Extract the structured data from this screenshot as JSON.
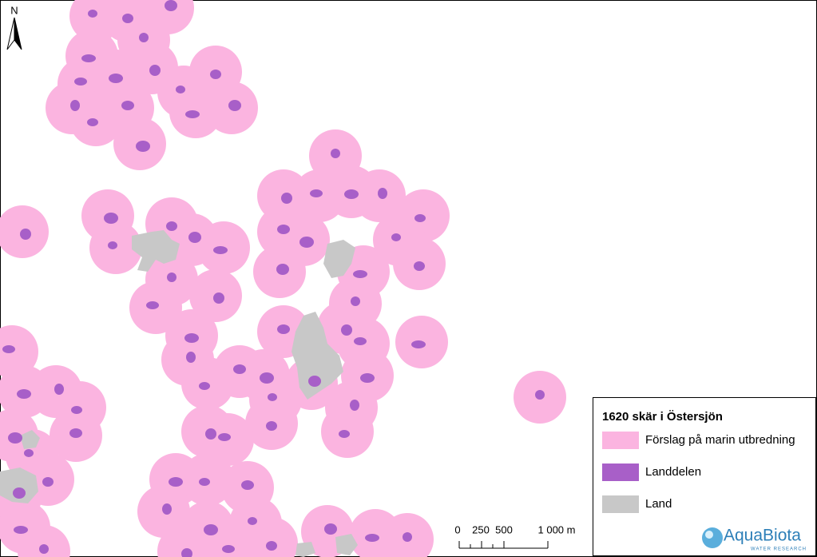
{
  "north_arrow": {
    "label": "N"
  },
  "legend": {
    "title": "1620 skär i Östersjön",
    "items": [
      {
        "label": "Förslag på marin utbredning",
        "color": "#fbb4e0"
      },
      {
        "label": "Landdelen",
        "color": "#a85fc8"
      },
      {
        "label": "Land",
        "color": "#c8c8c8"
      }
    ]
  },
  "scale_bar": {
    "labels": [
      "0",
      "250",
      "500",
      "1 000 m"
    ]
  },
  "logo": {
    "name": "AquaBiota",
    "tagline": "WATER RESEARCH"
  }
}
